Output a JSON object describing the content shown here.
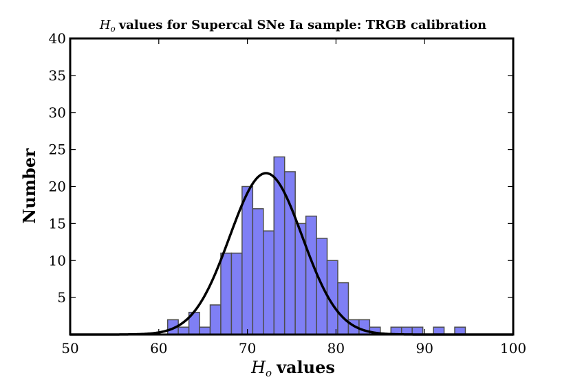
{
  "chart_data": {
    "type": "bar",
    "title": "Ho values for Supercal SNe Ia sample: TRGB calibration",
    "title_parts": {
      "symbol": "H",
      "subscript": "o",
      "text": "values for Supercal SNe Ia sample: TRGB calibration"
    },
    "xlabel": "Ho values",
    "xlabel_parts": {
      "symbol": "H",
      "subscript": "o",
      "text": "values"
    },
    "ylabel": "Number",
    "xlim": [
      50,
      100
    ],
    "ylim": [
      0,
      40
    ],
    "xticks": [
      50,
      60,
      70,
      80,
      90,
      100
    ],
    "yticks": [
      5,
      10,
      15,
      20,
      25,
      30,
      35,
      40
    ],
    "grid": false,
    "bin_width": 1.2,
    "bins": [
      {
        "x_start": 61.0,
        "count": 2
      },
      {
        "x_start": 62.2,
        "count": 1
      },
      {
        "x_start": 63.4,
        "count": 3
      },
      {
        "x_start": 64.6,
        "count": 1
      },
      {
        "x_start": 65.8,
        "count": 4
      },
      {
        "x_start": 67.0,
        "count": 11
      },
      {
        "x_start": 68.2,
        "count": 11
      },
      {
        "x_start": 69.4,
        "count": 20
      },
      {
        "x_start": 70.6,
        "count": 17
      },
      {
        "x_start": 71.8,
        "count": 14
      },
      {
        "x_start": 73.0,
        "count": 24
      },
      {
        "x_start": 74.2,
        "count": 22
      },
      {
        "x_start": 75.4,
        "count": 15
      },
      {
        "x_start": 76.6,
        "count": 16
      },
      {
        "x_start": 77.8,
        "count": 13
      },
      {
        "x_start": 79.0,
        "count": 10
      },
      {
        "x_start": 80.2,
        "count": 7
      },
      {
        "x_start": 81.4,
        "count": 2
      },
      {
        "x_start": 82.6,
        "count": 2
      },
      {
        "x_start": 83.8,
        "count": 1
      },
      {
        "x_start": 86.2,
        "count": 1
      },
      {
        "x_start": 87.4,
        "count": 1
      },
      {
        "x_start": 88.6,
        "count": 1
      },
      {
        "x_start": 91.0,
        "count": 1
      },
      {
        "x_start": 93.4,
        "count": 1
      }
    ],
    "gaussian_fit": {
      "mean": 72.1,
      "sigma": 4.1,
      "peak": 21.8
    },
    "colors": {
      "bar_fill": "#7f7ff5",
      "bar_edge": "#4d4d4d",
      "curve": "#000000"
    }
  }
}
